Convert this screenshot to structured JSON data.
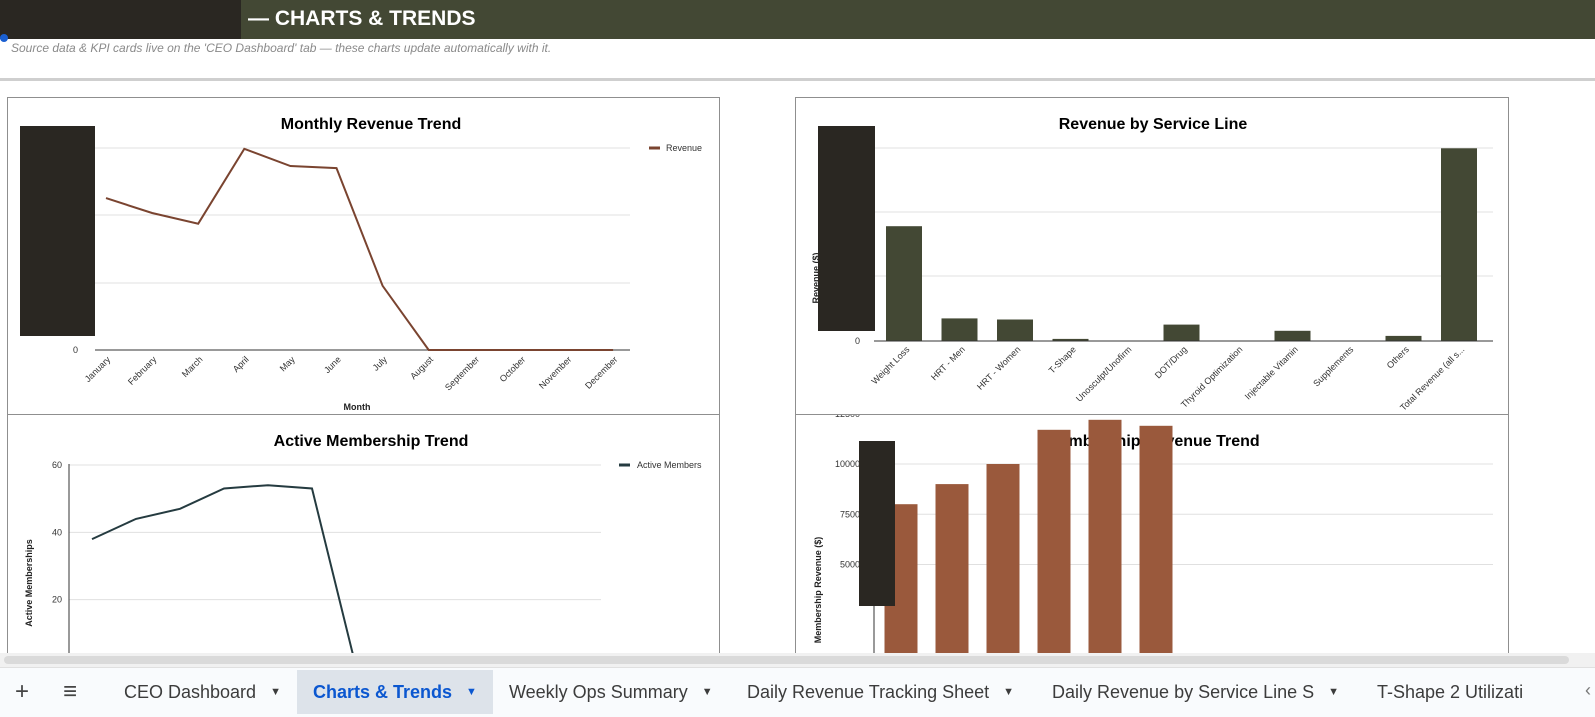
{
  "header": {
    "title": "—  CHARTS & TRENDS",
    "subtitle": "Source data & KPI cards live on the 'CEO Dashboard' tab — these charts update automatically with it."
  },
  "colors": {
    "header_bg": "#434834",
    "revenue_line": "#7a4430",
    "service_bar": "#434834",
    "members_line": "#253b40",
    "membership_bar": "#9a593c"
  },
  "chart_data": [
    {
      "type": "line",
      "title": "Monthly Revenue Trend",
      "xlabel": "Month",
      "ylabel": "",
      "categories": [
        "January",
        "February",
        "March",
        "April",
        "May",
        "June",
        "July",
        "August",
        "September",
        "October",
        "November",
        "December"
      ],
      "series": [
        {
          "name": "Revenue",
          "values": [
            0.71,
            0.64,
            0.59,
            0.94,
            0.86,
            0.85,
            0.3,
            0,
            0,
            0,
            0,
            0
          ]
        }
      ],
      "y_tick_labels": [
        "0"
      ],
      "legend": "top-right",
      "grid": true
    },
    {
      "type": "bar",
      "title": "Revenue by Service Line",
      "xlabel": "",
      "ylabel": "Revenue ($)",
      "categories": [
        "Weight Loss",
        "HRT - Men",
        "HRT - Women",
        "T-Shape",
        "Unosculpt/Unofirm",
        "DOT/Drug",
        "Thyroid Optimization",
        "Injectable Vitamin",
        "Supplements",
        "Others",
        "Total Revenue (all s..."
      ],
      "values": [
        0.56,
        0.11,
        0.105,
        0.01,
        0,
        0.08,
        0,
        0.05,
        0,
        0.025,
        0.94
      ],
      "y_tick_labels": [
        "0"
      ],
      "grid": true
    },
    {
      "type": "line",
      "title": "Active Membership Trend",
      "ylabel": "Active Memberships",
      "series": [
        {
          "name": "Active Members",
          "values": [
            38,
            44,
            47,
            53,
            54,
            53,
            0
          ]
        }
      ],
      "ylim": [
        0,
        60
      ],
      "y_ticks": [
        20,
        40,
        60
      ],
      "legend": "top-right",
      "grid": true
    },
    {
      "type": "bar",
      "title": "Membership Revenue Trend",
      "ylabel": "Membership Revenue ($)",
      "values": [
        8000,
        9000,
        10000,
        11700,
        12200,
        11900
      ],
      "ylim": [
        0,
        12500
      ],
      "y_ticks": [
        5000,
        7500,
        10000,
        12500
      ],
      "grid": true
    }
  ],
  "tabs": {
    "add_icon": "plus-icon",
    "menu_icon": "menu-icon",
    "items": [
      {
        "label": "CEO Dashboard"
      },
      {
        "label": "Charts & Trends"
      },
      {
        "label": "Weekly Ops Summary"
      },
      {
        "label": "Daily Revenue Tracking Sheet"
      },
      {
        "label": "Daily Revenue by Service Line S"
      },
      {
        "label": "T-Shape 2 Utilizati"
      }
    ]
  }
}
